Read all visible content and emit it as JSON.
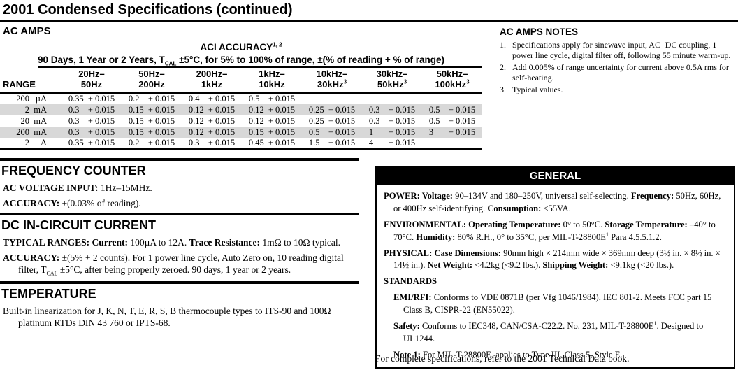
{
  "page": {
    "title": "2001 Condensed Specifications (continued)",
    "footer": "For complete specifications, refer to the 2001 Technical Data book."
  },
  "ac_amps": {
    "heading": "AC AMPS",
    "table": {
      "title_segments": [
        {
          "t": "ACI ACCURACY"
        },
        {
          "t": "1, 2",
          "sup": true
        }
      ],
      "subtitle_segments": [
        {
          "t": "90 Days, 1 Year or 2 Years, T"
        },
        {
          "t": "CAL",
          "sub": true
        },
        {
          "t": " ±5°C, for 5% to 100% of range, ±(% of reading + % of range)"
        }
      ],
      "range_header": "RANGE",
      "columns": [
        {
          "line1": "20Hz–",
          "line2": "50Hz",
          "sup": ""
        },
        {
          "line1": "50Hz–",
          "line2": "200Hz",
          "sup": ""
        },
        {
          "line1": "200Hz–",
          "line2": "1kHz",
          "sup": ""
        },
        {
          "line1": "1kHz–",
          "line2": "10kHz",
          "sup": ""
        },
        {
          "line1": "10kHz–",
          "line2": "30kHz",
          "sup": "3"
        },
        {
          "line1": "30kHz–",
          "line2": "50kHz",
          "sup": "3"
        },
        {
          "line1": "50kHz–",
          "line2": "100kHz",
          "sup": "3"
        }
      ],
      "rows": [
        {
          "range_value": "200",
          "range_unit": "µA",
          "shaded": false,
          "cells": [
            "0.35 + 0.015",
            "0.2 + 0.015",
            "0.4 + 0.015",
            "0.5 + 0.015",
            "",
            "",
            ""
          ]
        },
        {
          "range_value": "2",
          "range_unit": "mA",
          "shaded": true,
          "cells": [
            "0.3 + 0.015",
            "0.15 + 0.015",
            "0.12 + 0.015",
            "0.12 + 0.015",
            "0.25 + 0.015",
            "0.3 + 0.015",
            "0.5 + 0.015"
          ]
        },
        {
          "range_value": "20",
          "range_unit": "mA",
          "shaded": false,
          "cells": [
            "0.3 + 0.015",
            "0.15 + 0.015",
            "0.12 + 0.015",
            "0.12 + 0.015",
            "0.25 + 0.015",
            "0.3 + 0.015",
            "0.5 + 0.015"
          ]
        },
        {
          "range_value": "200",
          "range_unit": "mA",
          "shaded": true,
          "cells": [
            "0.3 + 0.015",
            "0.15 + 0.015",
            "0.12 + 0.015",
            "0.15 + 0.015",
            "0.5 + 0.015",
            "1 + 0.015",
            "3 + 0.015"
          ]
        },
        {
          "range_value": "2",
          "range_unit": "A",
          "shaded": false,
          "cells": [
            "0.35 + 0.015",
            "0.2 + 0.015",
            "0.3 + 0.015",
            "0.45 + 0.015",
            "1.5 + 0.015",
            "4 + 0.015",
            ""
          ]
        }
      ]
    }
  },
  "ac_amps_notes": {
    "heading": "AC AMPS NOTES",
    "items": [
      "Specifications apply for sinewave input, AC+DC coupling, 1 power line cycle, digital filter off, following 55 minute warm-up.",
      "Add 0.005% of range uncertainty for current above 0.5A rms for self-heating.",
      "Typical values."
    ]
  },
  "frequency_counter": {
    "heading": "FREQUENCY COUNTER",
    "line1_segments": [
      {
        "t": "AC VOLTAGE INPUT:",
        "b": true
      },
      {
        "t": " 1Hz–15MHz."
      }
    ],
    "line2_segments": [
      {
        "t": "ACCURACY:",
        "b": true
      },
      {
        "t": " ±(0.03% of reading)."
      }
    ]
  },
  "dc_in_circuit": {
    "heading": "DC IN-CIRCUIT CURRENT",
    "line1_segments": [
      {
        "t": "TYPICAL RANGES: Current:",
        "b": true
      },
      {
        "t": " 100µA to 12A. "
      },
      {
        "t": "Trace Resistance:",
        "b": true
      },
      {
        "t": " 1mΩ to 10Ω typical."
      }
    ],
    "line2_segments": [
      {
        "t": "ACCURACY:",
        "b": true
      },
      {
        "t": " ±(5% + 2 counts). For 1 power line cycle, Auto Zero on, 10 reading digital filter, T"
      },
      {
        "t": "CAL",
        "sub": true
      },
      {
        "t": " ±5°C, after being properly zeroed. 90 days, 1 year or 2 years."
      }
    ]
  },
  "temperature": {
    "heading": "TEMPERATURE",
    "body_segments": [
      {
        "t": "Built-in linearization for J, K, N, T, E, R, S, B thermocouple types to ITS-90 and 100Ω platinum RTDs DIN 43 760 or IPTS-68."
      }
    ]
  },
  "general": {
    "heading": "GENERAL",
    "paragraphs": [
      {
        "level": 0,
        "segments": [
          {
            "t": "POWER: Voltage:",
            "b": true
          },
          {
            "t": " 90–134V and 180–250V, universal self-selecting. "
          },
          {
            "t": "Frequency:",
            "b": true
          },
          {
            "t": " 50Hz, 60Hz, or 400Hz self-identifying. "
          },
          {
            "t": "Consumption:",
            "b": true
          },
          {
            "t": " <55VA."
          }
        ]
      },
      {
        "level": 0,
        "segments": [
          {
            "t": "ENVIRONMENTAL: Operating Temperature:",
            "b": true
          },
          {
            "t": " 0° to 50°C. "
          },
          {
            "t": "Storage Temperature:",
            "b": true
          },
          {
            "t": " –40° to 70°C. "
          },
          {
            "t": "Humidity:",
            "b": true
          },
          {
            "t": " 80% R.H., 0° to 35°C, per MIL-T-28800E"
          },
          {
            "t": "1",
            "sup": true
          },
          {
            "t": " Para 4.5.5.1.2."
          }
        ]
      },
      {
        "level": 0,
        "segments": [
          {
            "t": "PHYSICAL: Case Dimensions:",
            "b": true
          },
          {
            "t": " 90mm high × 214mm wide × 369mm deep (3½ in. × 8½ in. × 14½ in.). "
          },
          {
            "t": "Net Weight:",
            "b": true
          },
          {
            "t": " <4.2kg (<9.2 lbs.). "
          },
          {
            "t": "Shipping Weight:",
            "b": true
          },
          {
            "t": " <9.1kg (<20 lbs.)."
          }
        ]
      },
      {
        "level": 0,
        "segments": [
          {
            "t": "STANDARDS",
            "b": true
          }
        ]
      },
      {
        "level": 1,
        "segments": [
          {
            "t": "EMI/RFI:",
            "b": true
          },
          {
            "t": " Conforms to VDE 0871B (per Vfg 1046/1984), IEC 801-2. Meets FCC part 15 Class B, CISPR-22 (EN55022)."
          }
        ]
      },
      {
        "level": 1,
        "segments": [
          {
            "t": "Safety:",
            "b": true
          },
          {
            "t": " Conforms to IEC348, CAN/CSA-C22.2. No. 231, MIL-T-28800E"
          },
          {
            "t": "1",
            "sup": true
          },
          {
            "t": ". Designed to UL1244."
          }
        ]
      },
      {
        "level": 1,
        "segments": [
          {
            "t": "Note 1:",
            "b": true
          },
          {
            "t": " For MIL-T-28800E, applies to Type III, Class 5, Style E."
          }
        ]
      }
    ]
  }
}
